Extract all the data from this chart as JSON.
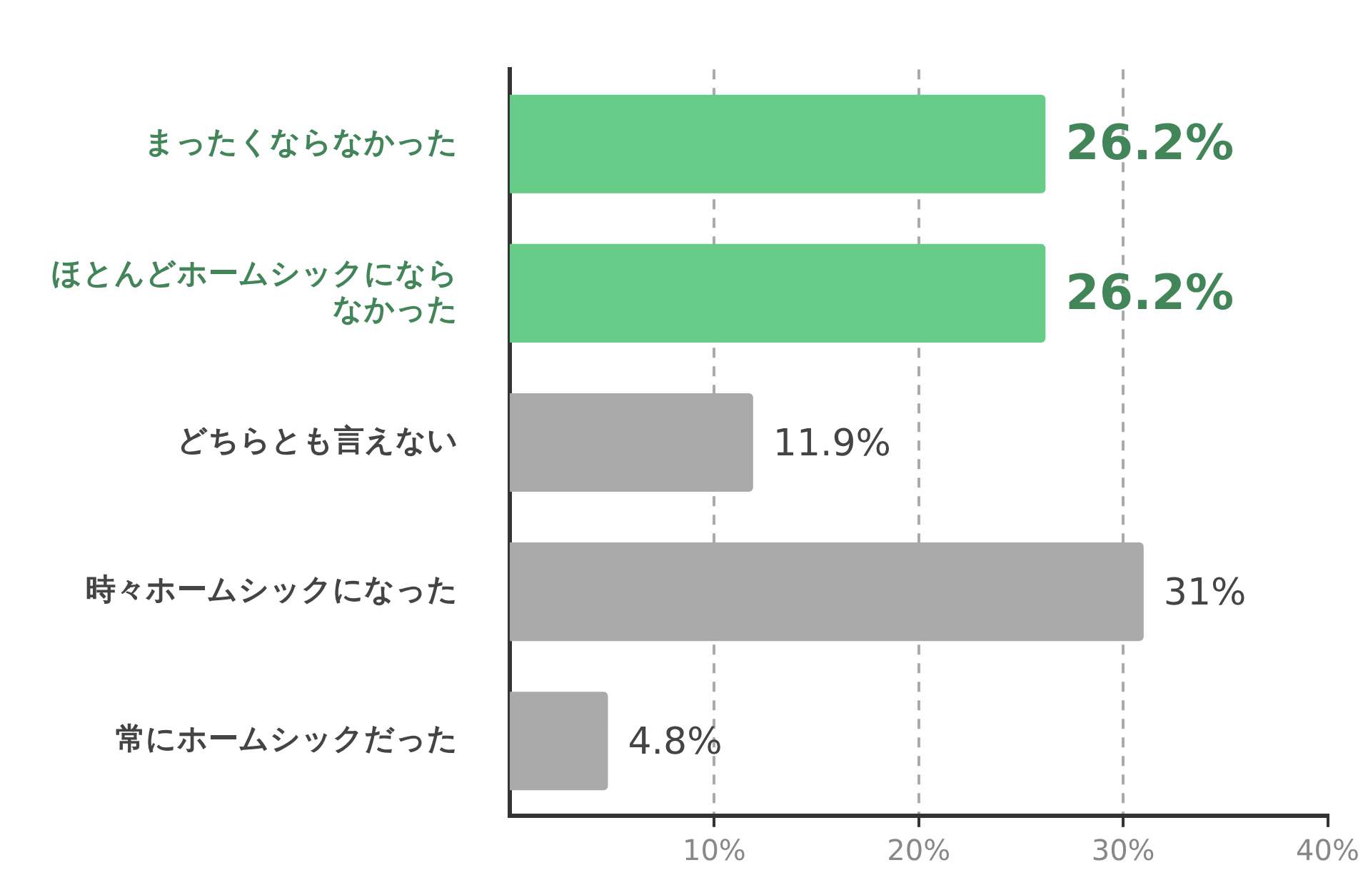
{
  "chart_data": {
    "type": "bar",
    "orientation": "horizontal",
    "categories": [
      "まったくならなかった",
      "ほとんどホームシックにならなかった",
      "どちらとも言えない",
      "時々ホームシックになった",
      "常にホームシックだった"
    ],
    "values": [
      26.2,
      26.2,
      11.9,
      31,
      4.8
    ],
    "colors": [
      "#66cc88",
      "#66cc88",
      "#aaaaaa",
      "#aaaaaa",
      "#aaaaaa"
    ],
    "value_labels": [
      "26.2%",
      "26.2%",
      "11.9%",
      "31%",
      "4.8%"
    ],
    "xlim": [
      0,
      40
    ],
    "xticks": [
      {
        "value": 10,
        "label": "10%"
      },
      {
        "value": 20,
        "label": "20%"
      },
      {
        "value": 30,
        "label": "30%"
      },
      {
        "value": 40,
        "label": "40%"
      }
    ],
    "grid": "x",
    "legend": false
  }
}
